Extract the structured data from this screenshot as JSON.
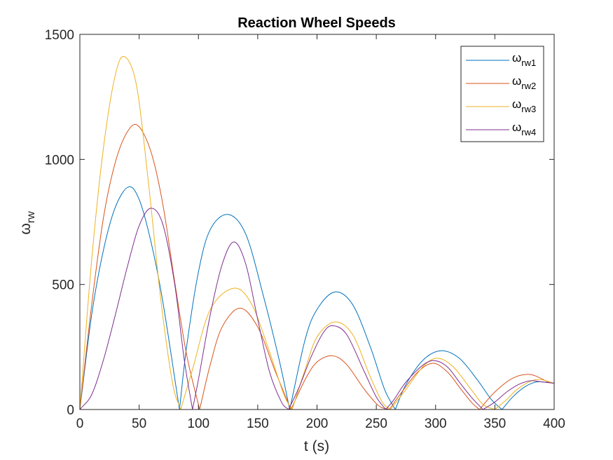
{
  "chart_data": {
    "type": "line",
    "title": "Reaction Wheel Speeds",
    "xlabel": "t (s)",
    "ylabel": {
      "symbol": "ω",
      "sub": "rw"
    },
    "xlim": [
      0,
      400
    ],
    "ylim": [
      0,
      1500
    ],
    "xticks": [
      0,
      50,
      100,
      150,
      200,
      250,
      300,
      350,
      400
    ],
    "yticks": [
      0,
      500,
      1000,
      1500
    ],
    "grid": false,
    "legend_position": "top-right",
    "series": [
      {
        "name": {
          "symbol": "ω",
          "sub": "rw1"
        },
        "color": "#0072BD",
        "x": [
          0,
          10,
          20,
          30,
          41,
          50,
          60,
          70,
          84,
          90,
          100,
          110,
          125,
          140,
          155,
          168,
          177,
          190,
          200,
          215,
          230,
          245,
          257,
          266,
          275,
          290,
          305,
          320,
          335,
          347,
          356,
          365,
          375,
          385,
          395,
          400
        ],
        "y": [
          0,
          380,
          640,
          810,
          890,
          840,
          670,
          430,
          0,
          250,
          550,
          720,
          780,
          700,
          450,
          200,
          0,
          280,
          400,
          470,
          420,
          250,
          80,
          0,
          100,
          200,
          235,
          205,
          120,
          40,
          0,
          50,
          90,
          110,
          108,
          105
        ]
      },
      {
        "name": {
          "symbol": "ω",
          "sub": "rw2"
        },
        "color": "#D95319",
        "x": [
          0,
          10,
          20,
          30,
          40,
          49,
          60,
          70,
          80,
          90,
          101,
          110,
          120,
          135,
          150,
          165,
          178,
          190,
          200,
          213,
          225,
          240,
          252,
          261,
          270,
          285,
          298,
          310,
          320,
          330,
          337,
          350,
          365,
          380,
          395,
          400
        ],
        "y": [
          0,
          420,
          770,
          990,
          1110,
          1135,
          1030,
          820,
          510,
          220,
          0,
          180,
          330,
          405,
          330,
          150,
          0,
          120,
          190,
          215,
          180,
          80,
          15,
          0,
          60,
          150,
          185,
          150,
          90,
          30,
          0,
          70,
          125,
          140,
          110,
          105
        ]
      },
      {
        "name": {
          "symbol": "ω",
          "sub": "rw3"
        },
        "color": "#EDB120",
        "x": [
          0,
          10,
          20,
          30,
          38,
          48,
          58,
          68,
          78,
          85,
          95,
          110,
          130,
          145,
          160,
          172,
          179,
          190,
          200,
          215,
          230,
          245,
          255,
          262,
          275,
          290,
          302,
          315,
          330,
          340,
          350,
          360,
          370,
          385,
          400
        ],
        "y": [
          0,
          600,
          1050,
          1340,
          1410,
          1290,
          900,
          450,
          110,
          0,
          160,
          400,
          485,
          420,
          230,
          60,
          0,
          160,
          290,
          350,
          300,
          130,
          30,
          0,
          80,
          175,
          205,
          170,
          80,
          20,
          0,
          40,
          85,
          120,
          105
        ]
      },
      {
        "name": {
          "symbol": "ω",
          "sub": "rw4"
        },
        "color": "#7E2F8E",
        "x": [
          0,
          10,
          20,
          30,
          40,
          50,
          60,
          70,
          80,
          88,
          95,
          100,
          110,
          120,
          130,
          140,
          150,
          160,
          170,
          176,
          185,
          195,
          205,
          213,
          225,
          240,
          250,
          258,
          265,
          275,
          290,
          300,
          310,
          320,
          330,
          340,
          350,
          360,
          370,
          380,
          390,
          400
        ],
        "y": [
          0,
          60,
          200,
          380,
          570,
          735,
          805,
          740,
          500,
          200,
          0,
          120,
          380,
          580,
          670,
          580,
          360,
          150,
          30,
          0,
          90,
          210,
          305,
          335,
          300,
          150,
          50,
          0,
          40,
          110,
          180,
          195,
          170,
          110,
          50,
          0,
          30,
          70,
          100,
          115,
          110,
          105
        ]
      }
    ]
  }
}
